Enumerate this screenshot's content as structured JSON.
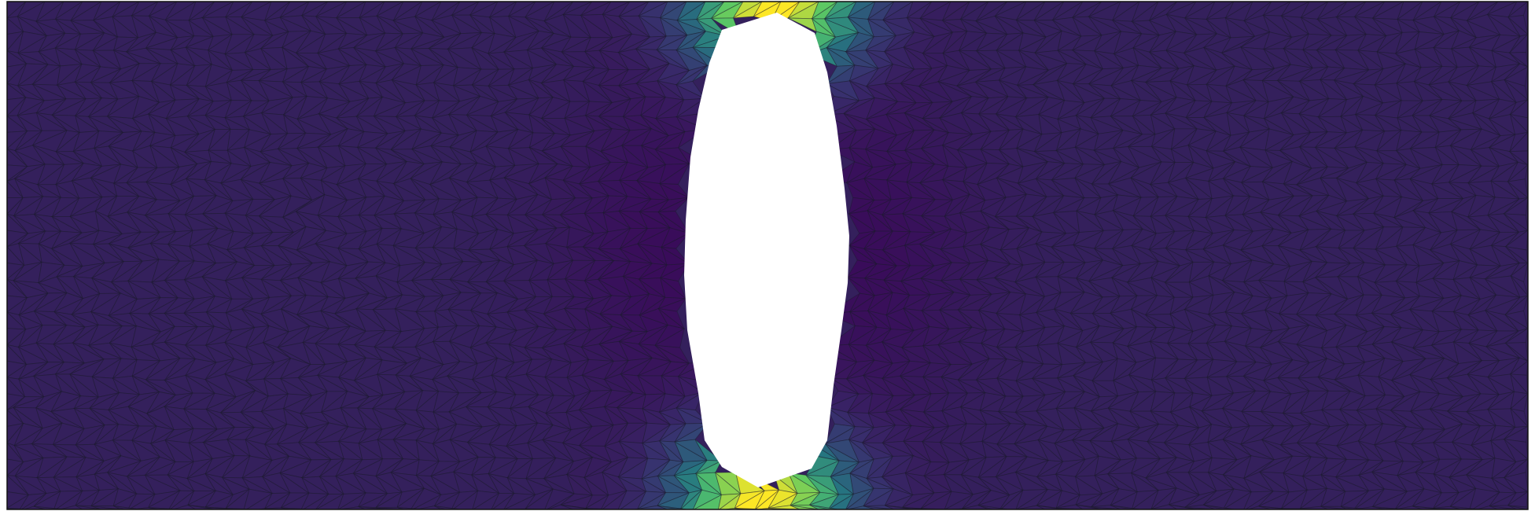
{
  "figure": {
    "kind": "finite-element-mesh-contour",
    "domain_shape": "rectangular-plate",
    "cutout_shape": "vertical-elongated-hole",
    "colormap": "viridis",
    "colormap_stops": [
      "#440154",
      "#3b528b",
      "#21918c",
      "#5ec962",
      "#fde725"
    ],
    "background_field_color": "#34205c",
    "low_field_color": "#3a0a5a",
    "hole_color": "#ffffff",
    "mesh_line_color": "#1a1a2a",
    "border_color": "#111111"
  }
}
